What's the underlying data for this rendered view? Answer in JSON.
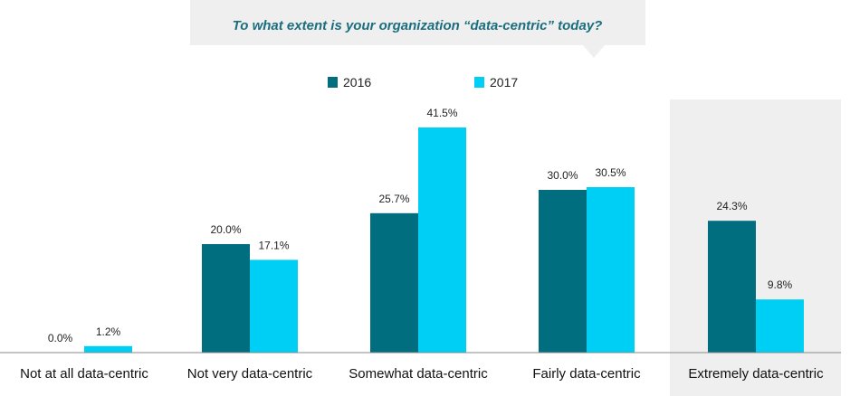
{
  "chart_data": {
    "type": "bar",
    "title": "To what extent is your organization “data-centric” today?",
    "categories": [
      "Not at all data-centric",
      "Not very data-centric",
      "Somewhat data-centric",
      "Fairly data-centric",
      "Extremely data-centric"
    ],
    "series": [
      {
        "name": "2016",
        "values": [
          0.0,
          20.0,
          25.7,
          30.0,
          24.3
        ],
        "labels": [
          "0.0%",
          "20.0%",
          "25.7%",
          "30.0%",
          "24.3%"
        ],
        "color": "#006E7F"
      },
      {
        "name": "2017",
        "values": [
          1.2,
          17.1,
          41.5,
          30.5,
          9.8
        ],
        "labels": [
          "1.2%",
          "17.1%",
          "41.5%",
          "30.5%",
          "9.8%"
        ],
        "color": "#00CFF5"
      }
    ],
    "ylim": [
      0,
      45
    ],
    "grid": false,
    "legend_position": "top-center",
    "highlighted_category": "Extremely data-centric"
  },
  "colors": {
    "title_text": "#1A6E7E",
    "title_box": "#EFEFEF",
    "highlight_band": "#EFEFEF",
    "axis": "#888888"
  }
}
